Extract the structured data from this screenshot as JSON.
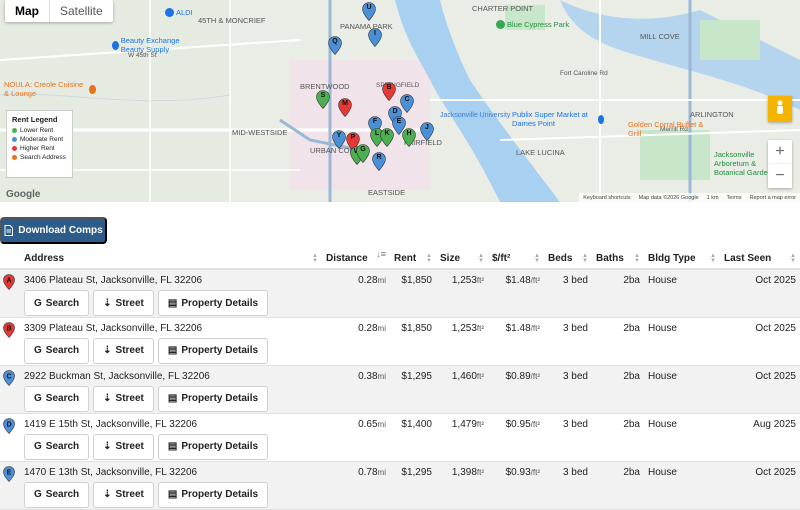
{
  "map": {
    "type_tabs": [
      {
        "label": "Map"
      },
      {
        "label": "Satellite"
      }
    ],
    "legend": {
      "title": "Rent Legend",
      "items": [
        {
          "label": "Lower Rent",
          "color": "#4caf50"
        },
        {
          "label": "Moderate Rent",
          "color": "#4a90d9"
        },
        {
          "label": "Higher Rent",
          "color": "#e53935"
        },
        {
          "label": "Search Address",
          "color": "#e8711a"
        }
      ]
    },
    "labels": [
      "45TH & MONCRIEF",
      "PANAMA PARK",
      "CHARTER POINT",
      "MILL COVE",
      "MID-WESTSIDE",
      "BRENTWOOD",
      "SPRINGFIELD",
      "EASTSIDE",
      "FAIRFIELD",
      "URBAN CORE",
      "LAKE LUCINA",
      "ARLINGTON",
      "Jacksonville University",
      "W 45th St",
      "Fort Caroline Rd",
      "Merrill Rd"
    ],
    "pois": [
      {
        "label": "ALDI",
        "color": "#1a73e8"
      },
      {
        "label": "Beauty Exchange Beauty Supply",
        "color": "#1a73e8"
      },
      {
        "label": "Blue Cypress Park",
        "color": "#34a853"
      },
      {
        "label": "NOULA: Creole Cuisine & Lounge",
        "color": "#e8711a"
      },
      {
        "label": "Publix Super Market at Dames Point",
        "color": "#1a73e8"
      },
      {
        "label": "Golden Corral Buffet & Grill",
        "color": "#e8711a"
      },
      {
        "label": "Jacksonville Arboretum & Botanical Gardens",
        "color": "#34a853"
      }
    ],
    "attribution": [
      "Keyboard shortcuts",
      "Map data ©2026 Google",
      "1 km",
      "Terms",
      "Report a map error"
    ],
    "logo": "Google"
  },
  "download_label": "Download Comps",
  "columns": [
    "Address",
    "Distance",
    "Rent",
    "Size",
    "$/ft²",
    "Beds",
    "Baths",
    "Bldg Type",
    "Last Seen"
  ],
  "actions": {
    "search": "Search",
    "street": "Street",
    "details": "Property Details"
  },
  "rows": [
    {
      "marker": "A",
      "color": "#e53935",
      "address": "3406 Plateau St, Jacksonville, FL 32206",
      "distance": "0.28",
      "distance_unit": "mi",
      "rent": "$1,850",
      "size": "1,253",
      "size_unit": "ft²",
      "ppsf": "$1.48",
      "ppsf_unit": "/ft²",
      "beds": "3 bed",
      "baths": "2ba",
      "type": "House",
      "last_seen": "Oct 2025"
    },
    {
      "marker": "B",
      "color": "#e53935",
      "address": "3309 Plateau St, Jacksonville, FL 32206",
      "distance": "0.28",
      "distance_unit": "mi",
      "rent": "$1,850",
      "size": "1,253",
      "size_unit": "ft²",
      "ppsf": "$1.48",
      "ppsf_unit": "/ft²",
      "beds": "3 bed",
      "baths": "2ba",
      "type": "House",
      "last_seen": "Oct 2025"
    },
    {
      "marker": "C",
      "color": "#4a90d9",
      "address": "2922 Buckman St, Jacksonville, FL 32206",
      "distance": "0.38",
      "distance_unit": "mi",
      "rent": "$1,295",
      "size": "1,460",
      "size_unit": "ft²",
      "ppsf": "$0.89",
      "ppsf_unit": "/ft²",
      "beds": "3 bed",
      "baths": "2ba",
      "type": "House",
      "last_seen": "Oct 2025"
    },
    {
      "marker": "D",
      "color": "#4a90d9",
      "address": "1419 E 15th St, Jacksonville, FL 32206",
      "distance": "0.65",
      "distance_unit": "mi",
      "rent": "$1,400",
      "size": "1,479",
      "size_unit": "ft²",
      "ppsf": "$0.95",
      "ppsf_unit": "/ft²",
      "beds": "3 bed",
      "baths": "2ba",
      "type": "House",
      "last_seen": "Aug 2025"
    },
    {
      "marker": "E",
      "color": "#4a90d9",
      "address": "1470 E 13th St, Jacksonville, FL 32206",
      "distance": "0.78",
      "distance_unit": "mi",
      "rent": "$1,295",
      "size": "1,398",
      "size_unit": "ft²",
      "ppsf": "$0.93",
      "ppsf_unit": "/ft²",
      "beds": "3 bed",
      "baths": "2ba",
      "type": "House",
      "last_seen": "Oct 2025"
    }
  ],
  "map_pins": [
    {
      "letter": "U",
      "color": "#4a90d9"
    },
    {
      "letter": "I",
      "color": "#4a90d9"
    },
    {
      "letter": "Q",
      "color": "#4a90d9"
    },
    {
      "letter": "S",
      "color": "#4caf50"
    },
    {
      "letter": "M",
      "color": "#e53935"
    },
    {
      "letter": "B",
      "color": "#e53935"
    },
    {
      "letter": "C",
      "color": "#4a90d9"
    },
    {
      "letter": "D",
      "color": "#4a90d9"
    },
    {
      "letter": "F",
      "color": "#4a90d9"
    },
    {
      "letter": "E",
      "color": "#4a90d9"
    },
    {
      "letter": "J",
      "color": "#4a90d9"
    },
    {
      "letter": "L",
      "color": "#4caf50"
    },
    {
      "letter": "K",
      "color": "#4caf50"
    },
    {
      "letter": "H",
      "color": "#4caf50"
    },
    {
      "letter": "Y",
      "color": "#4a90d9"
    },
    {
      "letter": "P",
      "color": "#e53935"
    },
    {
      "letter": "W",
      "color": "#4caf50"
    },
    {
      "letter": "G",
      "color": "#4caf50"
    },
    {
      "letter": "R",
      "color": "#4a90d9"
    }
  ]
}
